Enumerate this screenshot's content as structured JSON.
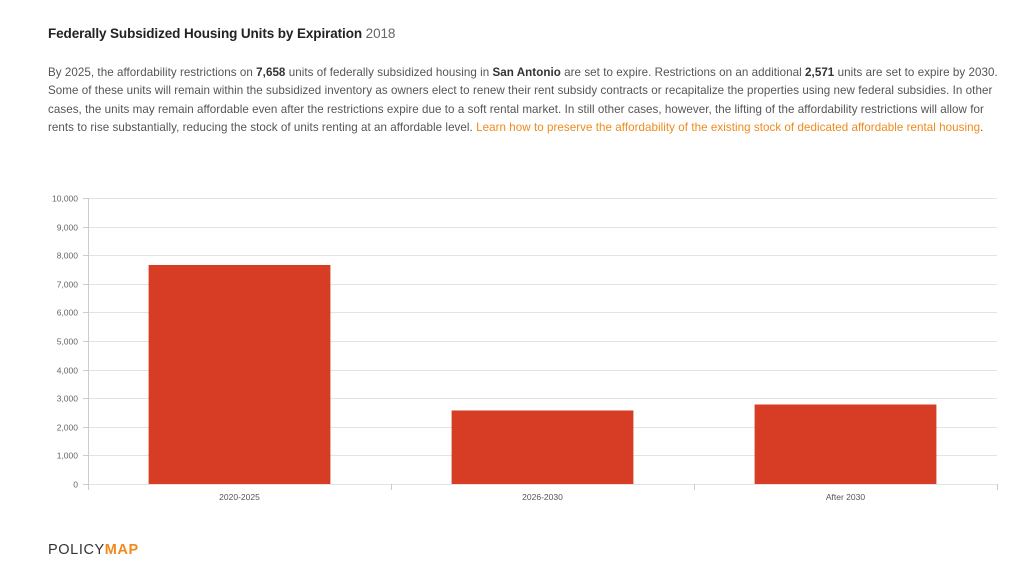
{
  "header": {
    "title": "Federally Subsidized Housing Units by Expiration",
    "year": "2018"
  },
  "description": {
    "p1": "By 2025, the affordability restrictions on ",
    "units_2025": "7,658",
    "p2": " units of federally subsidized housing in ",
    "city": "San Antonio",
    "p3": " are set to expire. Restrictions on an additional ",
    "units_2030": "2,571",
    "p4": " units are set to expire by 2030. Some of these units will remain within the subsidized inventory as owners elect to renew their rent subsidy contracts or recapitalize the properties using new federal subsidies. In other cases, the units may remain affordable even after the restrictions expire due to a soft rental market. In still other cases, however, the lifting of the affordability restrictions will allow for rents to rise substantially, reducing the stock of units renting at an affordable level. ",
    "link": "Learn how to preserve the affordability of the existing stock of dedicated affordable rental housing",
    "p5": "."
  },
  "logo": {
    "part1": "POLICY",
    "part2": "MAP"
  },
  "colors": {
    "bar": "#d63d24",
    "accent": "#f08a1c"
  },
  "chart_data": {
    "type": "bar",
    "categories": [
      "2020-2025",
      "2026-2030",
      "After 2030"
    ],
    "values": [
      7658,
      2571,
      2780
    ],
    "title": "",
    "xlabel": "",
    "ylabel": "",
    "ylim": [
      0,
      10000
    ],
    "yticks": [
      0,
      1000,
      2000,
      3000,
      4000,
      5000,
      6000,
      7000,
      8000,
      9000,
      10000
    ],
    "ytick_labels": [
      "0",
      "1,000",
      "2,000",
      "3,000",
      "4,000",
      "5,000",
      "6,000",
      "7,000",
      "8,000",
      "9,000",
      "10,000"
    ],
    "grid": true,
    "legend": "none"
  }
}
